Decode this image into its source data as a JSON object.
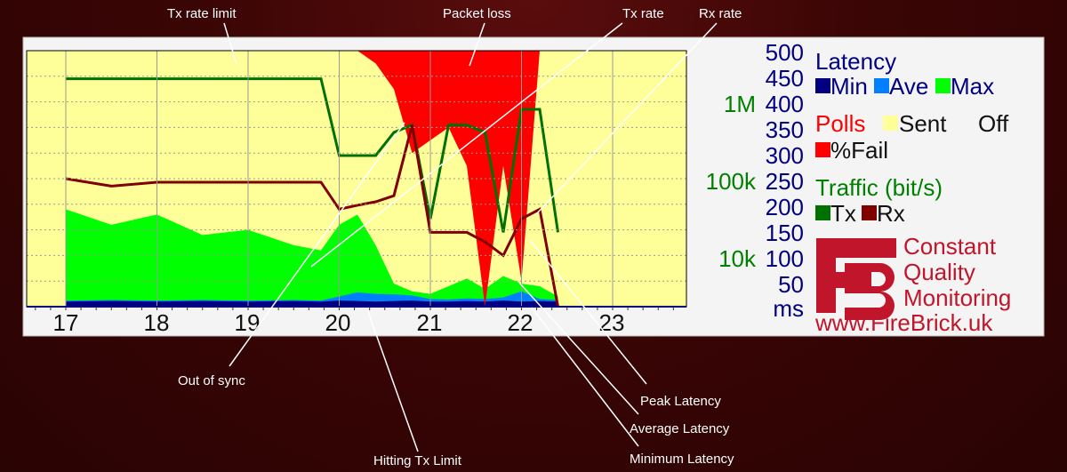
{
  "annotations": {
    "tx_rate_limit": "Tx rate limit",
    "packet_loss": "Packet loss",
    "tx_rate": "Tx rate",
    "rx_rate": "Rx rate",
    "out_of_sync": "Out of sync",
    "hitting_tx_limit": "Hitting Tx Limit",
    "peak_latency": "Peak Latency",
    "average_latency": "Average Latency",
    "minimum_latency": "Minimum Latency"
  },
  "legend": {
    "latency_title": "Latency",
    "min": "Min",
    "ave": "Ave",
    "max": "Max",
    "polls_title": "Polls",
    "sent": "Sent",
    "off": "Off",
    "fail": "%Fail",
    "traffic_title": "Traffic (bit/s)",
    "tx": "Tx",
    "rx": "Rx"
  },
  "brand": {
    "line1": "Constant",
    "line2": "Quality",
    "line3": "Monitoring",
    "url": "www.FireBrick.uk"
  },
  "colors": {
    "background": "#3a0505",
    "plot_background": "#ffff99",
    "latency_min": "#000080",
    "latency_ave": "#0080ff",
    "latency_max": "#00ff00",
    "polls_sent": "#ffff99",
    "polls_fail": "#ff0000",
    "tx": "#007000",
    "rx": "#800000",
    "brand_red": "#c0152a",
    "latency_axis": "#000080",
    "traffic_axis": "#008000"
  },
  "chart_data": {
    "type": "area",
    "title": "",
    "x_tick_labels": [
      "17",
      "18",
      "19",
      "20",
      "21",
      "22",
      "23"
    ],
    "latency_axis": {
      "unit": "ms",
      "ticks": [
        "50",
        "100",
        "150",
        "200",
        "250",
        "300",
        "350",
        "400",
        "450",
        "500"
      ],
      "ylim": [
        0,
        500
      ]
    },
    "traffic_axis": {
      "scale": "log",
      "ticks": [
        "10k",
        "100k",
        "1M"
      ]
    },
    "x": [
      17,
      17.5,
      18,
      18.5,
      19,
      19.5,
      19.8,
      20,
      20.2,
      20.4,
      20.6,
      20.8,
      21,
      21.2,
      21.4,
      21.6,
      21.8,
      22,
      22.2,
      22.4
    ],
    "series": [
      {
        "name": "Min",
        "values": [
          10,
          11,
          10,
          11,
          10,
          11,
          10,
          12,
          11,
          10,
          11,
          12,
          10,
          10,
          11,
          10,
          12,
          10,
          11,
          10
        ]
      },
      {
        "name": "Ave",
        "values": [
          12,
          13,
          12,
          13,
          12,
          13,
          12,
          20,
          28,
          25,
          24,
          22,
          15,
          14,
          16,
          15,
          18,
          30,
          15,
          13
        ]
      },
      {
        "name": "Max",
        "values": [
          190,
          160,
          180,
          140,
          150,
          120,
          110,
          160,
          180,
          120,
          45,
          30,
          25,
          40,
          55,
          35,
          60,
          45,
          40,
          20
        ]
      },
      {
        "name": "%Fail",
        "values": [
          0,
          0,
          0,
          0,
          0,
          0,
          0,
          0,
          0,
          5,
          15,
          40,
          35,
          30,
          45,
          100,
          45,
          90,
          0,
          0
        ]
      },
      {
        "name": "Tx",
        "values": [
          2000000,
          2000000,
          2000000,
          2000000,
          2000000,
          2000000,
          2000000,
          200000,
          200000,
          200000,
          400000,
          500000,
          30000,
          500000,
          500000,
          400000,
          20000,
          800000,
          800000,
          20000
        ]
      },
      {
        "name": "Rx",
        "values": [
          100000,
          80000,
          90000,
          90000,
          90000,
          90000,
          90000,
          40000,
          45000,
          50000,
          60000,
          500000,
          20000,
          20000,
          20000,
          15000,
          10000,
          30000,
          40000,
          2000
        ]
      }
    ]
  }
}
